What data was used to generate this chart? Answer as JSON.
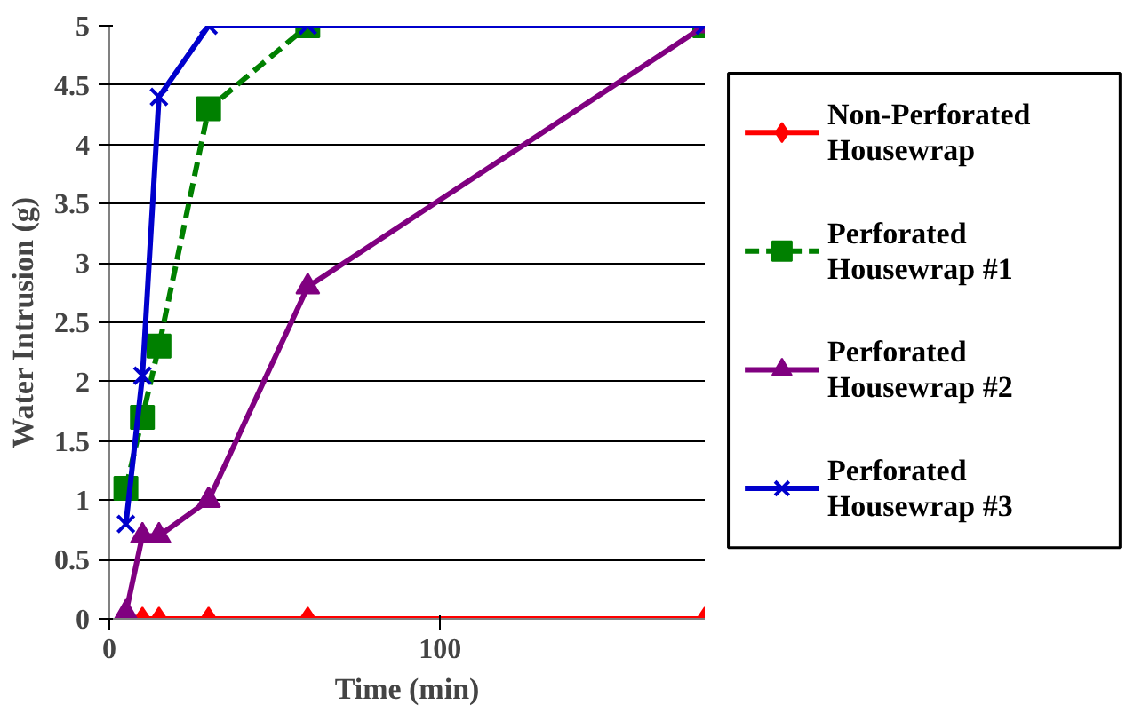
{
  "chart_data": {
    "type": "line",
    "xlabel": "Time (min)",
    "ylabel": "Water Intrusion (g)",
    "xlim": [
      0,
      180
    ],
    "xticks": [
      0,
      100
    ],
    "ylim": [
      0,
      5
    ],
    "yticks": [
      0,
      0.5,
      1,
      1.5,
      2,
      2.5,
      3,
      3.5,
      4,
      4.5,
      5
    ],
    "grid": "y",
    "legend": "right",
    "series": [
      {
        "name": "Non-Perforated Housewrap",
        "color": "#ff0000",
        "marker": "diamond",
        "line_style": "solid",
        "x": [
          5,
          10,
          15,
          30,
          60,
          180
        ],
        "values": [
          0,
          0,
          0,
          0,
          0,
          0
        ]
      },
      {
        "name": "Perforated Housewrap #1",
        "color": "#008000",
        "marker": "square",
        "line_style": "dashed",
        "x": [
          5,
          10,
          15,
          30,
          60,
          180
        ],
        "values": [
          1.1,
          1.7,
          2.3,
          4.3,
          5,
          5
        ]
      },
      {
        "name": "Perforated Housewrap #2",
        "color": "#800080",
        "marker": "triangle",
        "line_style": "solid",
        "x": [
          5,
          10,
          15,
          30,
          60,
          180
        ],
        "values": [
          0.05,
          0.7,
          0.7,
          1.0,
          2.8,
          5
        ]
      },
      {
        "name": "Perforated Housewrap #3",
        "color": "#0000cc",
        "marker": "cross",
        "line_style": "solid",
        "x": [
          5,
          10,
          15,
          30,
          60,
          180
        ],
        "values": [
          0.8,
          2.05,
          4.4,
          5,
          5,
          5
        ]
      }
    ]
  }
}
